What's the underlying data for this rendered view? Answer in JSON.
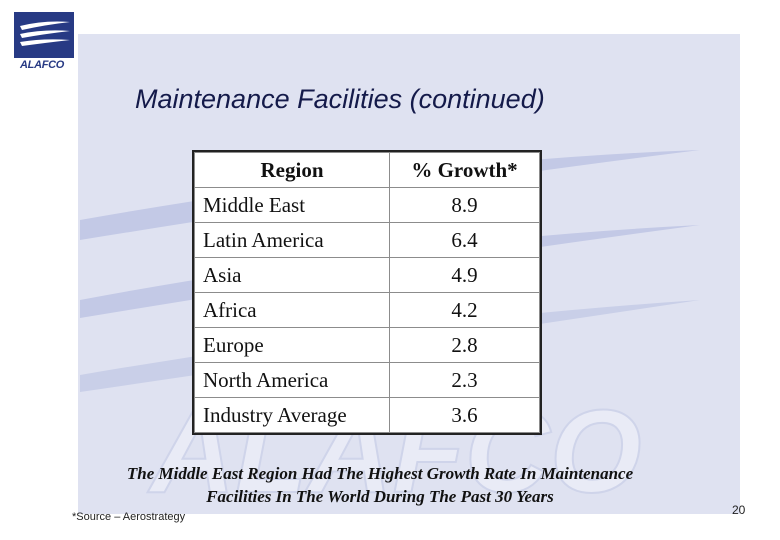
{
  "logo": {
    "text": "ALAFCO"
  },
  "title": "Maintenance Facilities (continued)",
  "watermark": {
    "text": "ALAFCO"
  },
  "table": {
    "headers": [
      "Region",
      "% Growth*"
    ],
    "rows": [
      {
        "region": "Middle East",
        "growth": "8.9"
      },
      {
        "region": "Latin America",
        "growth": "6.4"
      },
      {
        "region": "Asia",
        "growth": "4.9"
      },
      {
        "region": "Africa",
        "growth": "4.2"
      },
      {
        "region": "Europe",
        "growth": "2.8"
      },
      {
        "region": "North America",
        "growth": "2.3"
      },
      {
        "region": "Industry Average",
        "growth": "3.6"
      }
    ]
  },
  "caption": {
    "line1": "The Middle East Region Had The Highest Growth Rate In Maintenance",
    "line2": "Facilities In The World During The Past 30 Years"
  },
  "source": "*Source – Aerostrategy",
  "page_number": "20",
  "colors": {
    "brand": "#273a84",
    "background_panel": "#dfe2f1",
    "swoosh": "#b9c0e2"
  }
}
